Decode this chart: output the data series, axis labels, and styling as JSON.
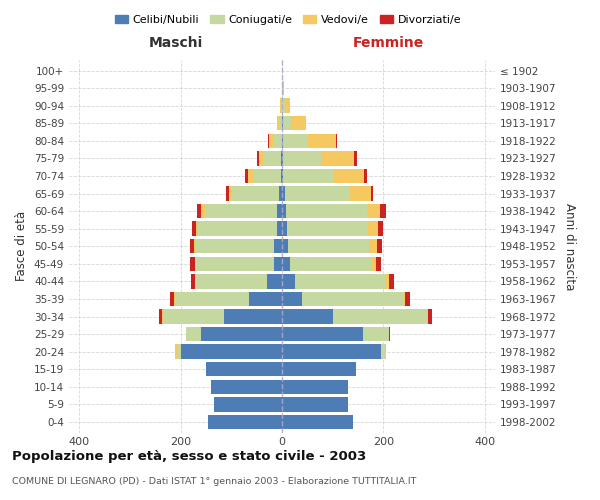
{
  "age_groups": [
    "0-4",
    "5-9",
    "10-14",
    "15-19",
    "20-24",
    "25-29",
    "30-34",
    "35-39",
    "40-44",
    "45-49",
    "50-54",
    "55-59",
    "60-64",
    "65-69",
    "70-74",
    "75-79",
    "80-84",
    "85-89",
    "90-94",
    "95-99",
    "100+"
  ],
  "birth_years": [
    "1998-2002",
    "1993-1997",
    "1988-1992",
    "1983-1987",
    "1978-1982",
    "1973-1977",
    "1968-1972",
    "1963-1967",
    "1958-1962",
    "1953-1957",
    "1948-1952",
    "1943-1947",
    "1938-1942",
    "1933-1937",
    "1928-1932",
    "1923-1927",
    "1918-1922",
    "1913-1917",
    "1908-1912",
    "1903-1907",
    "≤ 1902"
  ],
  "males": {
    "celibe": [
      145,
      135,
      140,
      150,
      200,
      160,
      115,
      65,
      30,
      15,
      15,
      10,
      10,
      5,
      2,
      2,
      0,
      0,
      0,
      0,
      0
    ],
    "coniugato": [
      0,
      0,
      0,
      0,
      8,
      30,
      120,
      145,
      140,
      155,
      155,
      155,
      140,
      95,
      55,
      35,
      15,
      5,
      2,
      0,
      0
    ],
    "vedovo": [
      0,
      0,
      0,
      0,
      2,
      0,
      2,
      2,
      2,
      2,
      3,
      5,
      10,
      5,
      10,
      8,
      10,
      5,
      2,
      0,
      0
    ],
    "divorziato": [
      0,
      0,
      0,
      0,
      0,
      0,
      5,
      8,
      8,
      10,
      8,
      8,
      8,
      5,
      5,
      5,
      2,
      0,
      0,
      0,
      0
    ]
  },
  "females": {
    "nubile": [
      140,
      130,
      130,
      145,
      195,
      160,
      100,
      40,
      25,
      15,
      12,
      10,
      8,
      5,
      2,
      2,
      2,
      2,
      0,
      0,
      0
    ],
    "coniugata": [
      0,
      0,
      0,
      0,
      10,
      50,
      185,
      200,
      180,
      160,
      160,
      160,
      160,
      130,
      100,
      75,
      50,
      15,
      5,
      2,
      0
    ],
    "vedova": [
      0,
      0,
      0,
      0,
      0,
      0,
      2,
      3,
      5,
      10,
      15,
      20,
      25,
      40,
      60,
      65,
      55,
      30,
      10,
      2,
      0
    ],
    "divorziata": [
      0,
      0,
      0,
      0,
      0,
      2,
      8,
      10,
      10,
      10,
      10,
      10,
      12,
      5,
      5,
      5,
      2,
      0,
      0,
      0,
      0
    ]
  },
  "colors": {
    "celibe": "#4e7db5",
    "coniugato": "#c5d8a0",
    "vedovo": "#f5c860",
    "divorziato": "#cc2222"
  },
  "title": "Popolazione per età, sesso e stato civile - 2003",
  "subtitle": "COMUNE DI LEGNARO (PD) - Dati ISTAT 1° gennaio 2003 - Elaborazione TUTTITALIA.IT",
  "xlabel_left": "Maschi",
  "xlabel_right": "Femmine",
  "ylabel_left": "Fasce di età",
  "ylabel_right": "Anni di nascita",
  "xlim": 420,
  "legend_labels": [
    "Celibi/Nubili",
    "Coniugati/e",
    "Vedovi/e",
    "Divorziati/e"
  ],
  "background_color": "#ffffff",
  "grid_color": "#cccccc",
  "bar_height": 0.82
}
